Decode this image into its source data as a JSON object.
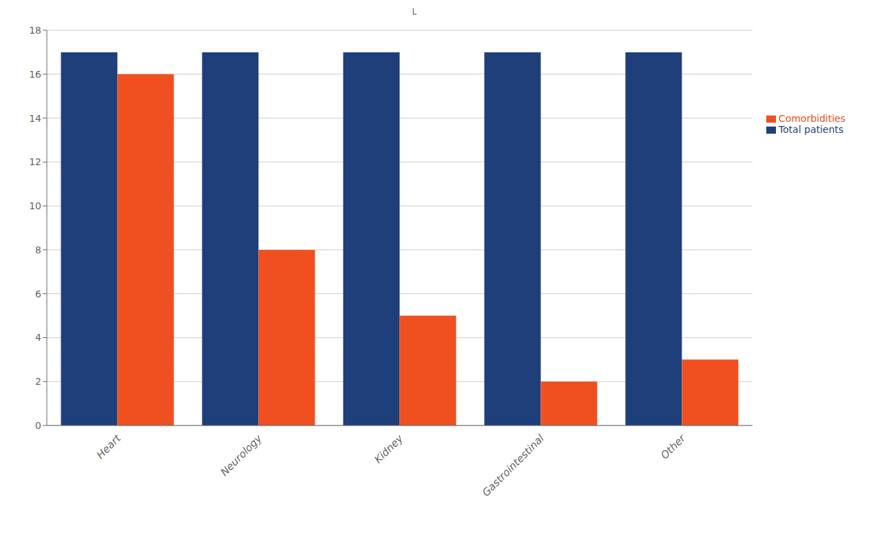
{
  "chart_data": {
    "type": "bar",
    "categories": [
      "Heart",
      "Neurology",
      "Kidney",
      "Gastrointestinal",
      "Other"
    ],
    "series": [
      {
        "name": "Total patients",
        "color": "#1F3F7A",
        "values": [
          17,
          17,
          17,
          17,
          17
        ]
      },
      {
        "name": "Comorbidities",
        "color": "#F05020",
        "values": [
          16,
          8,
          5,
          2,
          3
        ]
      }
    ],
    "ylim": [
      0,
      18
    ],
    "yticks": [
      0,
      2,
      4,
      6,
      8,
      10,
      12,
      14,
      16,
      18
    ],
    "grid": true,
    "legend": "right",
    "annotations": [
      "└"
    ]
  }
}
